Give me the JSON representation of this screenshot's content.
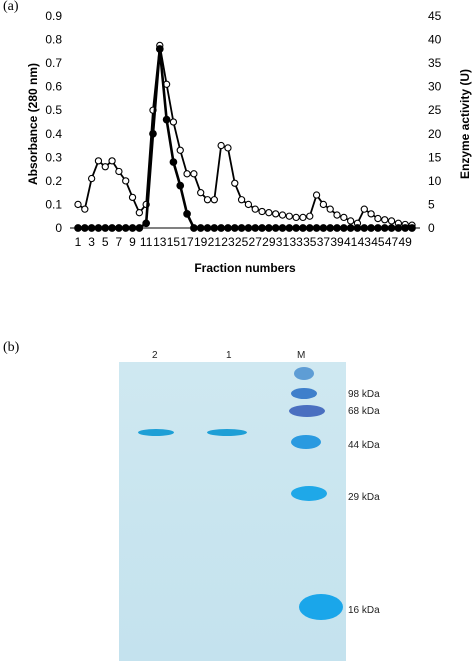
{
  "panels": {
    "a_label": "(a)",
    "b_label": "(b)"
  },
  "chart_data": {
    "type": "line",
    "xlabel": "Fraction numbers",
    "ylabel_left": "Absorbance (280 nm)",
    "ylabel_right": "Enzyme activity (U)",
    "ylim_left": [
      0,
      0.9
    ],
    "ylim_right": [
      0,
      45
    ],
    "left_ticks": [
      "0",
      "0.1",
      "0.2",
      "0.3",
      "0.4",
      "0.5",
      "0.6",
      "0.7",
      "0.8",
      "0.9"
    ],
    "right_ticks": [
      "0",
      "5",
      "10",
      "15",
      "20",
      "25",
      "30",
      "35",
      "40",
      "45"
    ],
    "x_tick_labels": [
      "1",
      "3",
      "5",
      "7",
      "9",
      "11",
      "13",
      "15",
      "17",
      "19",
      "21",
      "23",
      "25",
      "27",
      "29",
      "31",
      "33",
      "35",
      "37",
      "39",
      "41",
      "43",
      "45",
      "47",
      "49"
    ],
    "x": [
      1,
      2,
      3,
      4,
      5,
      6,
      7,
      8,
      9,
      10,
      11,
      12,
      13,
      14,
      15,
      16,
      17,
      18,
      19,
      20,
      21,
      22,
      23,
      24,
      25,
      26,
      27,
      28,
      29,
      30,
      31,
      32,
      33,
      34,
      35,
      36,
      37,
      38,
      39,
      40,
      41,
      42,
      43,
      44,
      45,
      46,
      47,
      48,
      49,
      50
    ],
    "series": [
      {
        "axis": "left",
        "marker": "open",
        "values": [
          0.1,
          0.08,
          0.21,
          0.285,
          0.26,
          0.285,
          0.24,
          0.2,
          0.13,
          0.065,
          0.1,
          0.5,
          0.775,
          0.61,
          0.45,
          0.33,
          0.23,
          0.23,
          0.15,
          0.12,
          0.12,
          0.35,
          0.34,
          0.19,
          0.12,
          0.1,
          0.08,
          0.07,
          0.065,
          0.06,
          0.055,
          0.05,
          0.045,
          0.045,
          0.05,
          0.14,
          0.1,
          0.08,
          0.055,
          0.045,
          0.03,
          0.02,
          0.08,
          0.06,
          0.04,
          0.035,
          0.03,
          0.02,
          0.015,
          0.012
        ]
      },
      {
        "axis": "right",
        "marker": "filled",
        "values": [
          0,
          0,
          0,
          0,
          0,
          0,
          0,
          0,
          0,
          0,
          1,
          20,
          38,
          23,
          14,
          9,
          3,
          0,
          0,
          0,
          0,
          0,
          0,
          0,
          0,
          0,
          0,
          0,
          0,
          0,
          0,
          0,
          0,
          0,
          0,
          0,
          0,
          0,
          0,
          0,
          0,
          0,
          0,
          0,
          0,
          0,
          0,
          0,
          0,
          0
        ]
      }
    ]
  },
  "gel": {
    "lanes": [
      "2",
      "1",
      "M"
    ],
    "markers": [
      "98 kDa",
      "68 kDa",
      "44 kDa",
      "29 kDa",
      "16 kDa"
    ]
  }
}
